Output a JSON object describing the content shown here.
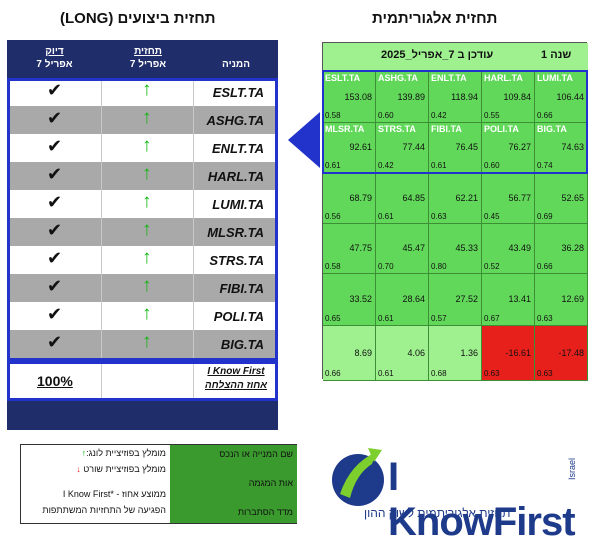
{
  "titles": {
    "left": "תחזית ביצועים (LONG)",
    "right": "תחזית אלגוריתמית"
  },
  "left_table": {
    "headers": {
      "accuracy_top": "דיוק",
      "accuracy_date": "7 אפריל",
      "forecast_top": "תחזית",
      "forecast_date": "7 אפריל",
      "stock": "המניה"
    },
    "rows": [
      {
        "ticker": "ESLT.TA"
      },
      {
        "ticker": "ASHG.TA"
      },
      {
        "ticker": "ENLT.TA"
      },
      {
        "ticker": "HARL.TA"
      },
      {
        "ticker": "LUMI.TA"
      },
      {
        "ticker": "MLSR.TA"
      },
      {
        "ticker": "STRS.TA"
      },
      {
        "ticker": "FIBI.TA"
      },
      {
        "ticker": "POLI.TA"
      },
      {
        "ticker": "BIG.TA"
      }
    ],
    "check_glyph": "✔",
    "up_arrow_glyph": "↑",
    "summary_percent": "100%",
    "summary_brand": "I Know First",
    "summary_label": "אחוז ההצלחה"
  },
  "grid": {
    "header_left": "עודכן ב 7_אפריל_2025",
    "header_right": "1 שנה",
    "rows": [
      [
        {
          "ticker": "ESLT.TA",
          "signal": "153.08",
          "pred": "0.58"
        },
        {
          "ticker": "ASHG.TA",
          "signal": "139.89",
          "pred": "0.60"
        },
        {
          "ticker": "ENLT.TA",
          "signal": "118.94",
          "pred": "0.42"
        },
        {
          "ticker": "HARL.TA",
          "signal": "109.84",
          "pred": "0.55"
        },
        {
          "ticker": "LUMI.TA",
          "signal": "106.44",
          "pred": "0.66"
        }
      ],
      [
        {
          "ticker": "MLSR.TA",
          "signal": "92.61",
          "pred": "0.61"
        },
        {
          "ticker": "STRS.TA",
          "signal": "77.44",
          "pred": "0.42"
        },
        {
          "ticker": "FIBI.TA",
          "signal": "76.45",
          "pred": "0.61"
        },
        {
          "ticker": "POLI.TA",
          "signal": "76.27",
          "pred": "0.60"
        },
        {
          "ticker": "BIG.TA",
          "signal": "74.63",
          "pred": "0.74"
        }
      ],
      [
        {
          "ticker": "",
          "signal": "68.79",
          "pred": "0.56"
        },
        {
          "ticker": "",
          "signal": "64.85",
          "pred": "0.61"
        },
        {
          "ticker": "",
          "signal": "62.21",
          "pred": "0.63"
        },
        {
          "ticker": "",
          "signal": "56.77",
          "pred": "0.45"
        },
        {
          "ticker": "",
          "signal": "52.65",
          "pred": "0.69"
        }
      ],
      [
        {
          "ticker": "",
          "signal": "47.75",
          "pred": "0.58"
        },
        {
          "ticker": "",
          "signal": "45.47",
          "pred": "0.70"
        },
        {
          "ticker": "",
          "signal": "45.33",
          "pred": "0.80"
        },
        {
          "ticker": "",
          "signal": "43.49",
          "pred": "0.52"
        },
        {
          "ticker": "",
          "signal": "36.28",
          "pred": "0.66"
        }
      ],
      [
        {
          "ticker": "",
          "signal": "33.52",
          "pred": "0.65"
        },
        {
          "ticker": "",
          "signal": "28.64",
          "pred": "0.61"
        },
        {
          "ticker": "",
          "signal": "27.52",
          "pred": "0.57"
        },
        {
          "ticker": "",
          "signal": "13.41",
          "pred": "0.67"
        },
        {
          "ticker": "",
          "signal": "12.69",
          "pred": "0.63"
        }
      ],
      [
        {
          "ticker": "",
          "signal": "8.69",
          "pred": "0.66"
        },
        {
          "ticker": "",
          "signal": "4.06",
          "pred": "0.61"
        },
        {
          "ticker": "",
          "signal": "1.36",
          "pred": "0.68"
        },
        {
          "ticker": "",
          "signal": "-16.61",
          "pred": "0.63"
        },
        {
          "ticker": "",
          "signal": "-17.48",
          "pred": "0.63"
        }
      ]
    ],
    "colors": {
      "strong": "#62d85a",
      "light": "#9ff08f",
      "negative": "#e8201c"
    }
  },
  "legend": {
    "long_text": "מומלץ בפוזיציית לונג:",
    "long_glyph": "↑",
    "short_text": "מומלץ בפוזיציית שורט",
    "short_glyph": "↓",
    "brand_note": "I Know First* - ממוצע אחוז",
    "brand_note2": "הפגיעה של התחזיות המשתתפות",
    "green_line1": "שם המנייה או הנכס",
    "green_line2": "אות המגמה",
    "green_line3": "מדד הסתברות"
  },
  "logo": {
    "name": "I KnowFirst",
    "tagline": "תחזית אלגוריתמית לשוק ההון",
    "country": "Israel"
  }
}
